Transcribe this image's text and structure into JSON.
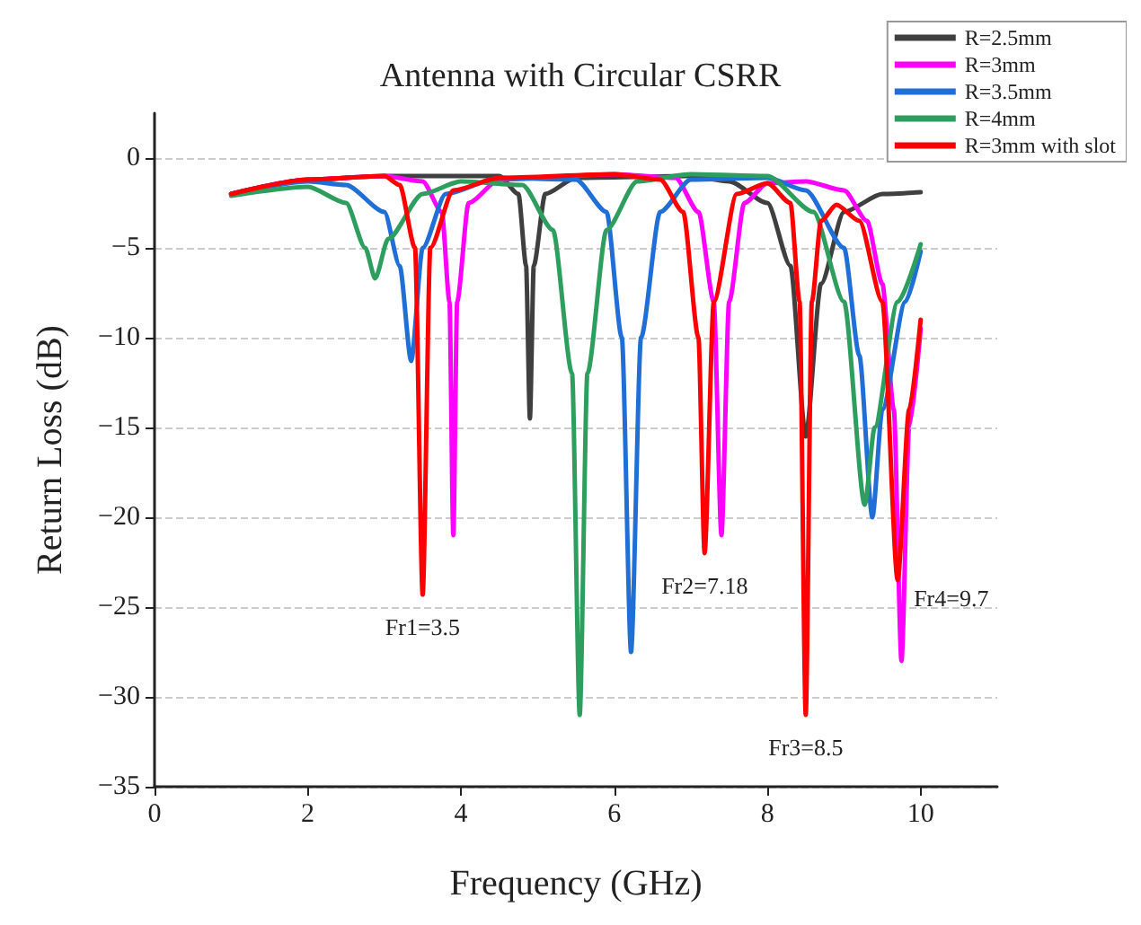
{
  "chart_data": {
    "type": "line",
    "title": "Antenna with Circular CSRR",
    "xlabel": "Frequency (GHz)",
    "ylabel": "Return Loss (dB)",
    "xlim": [
      0,
      11
    ],
    "xticks": [
      0,
      2,
      4,
      6,
      8,
      10
    ],
    "ylim": [
      -35,
      2.5
    ],
    "yticks": [
      -35,
      -30,
      -25,
      -20,
      -15,
      -10,
      -5,
      0
    ],
    "grid": "y",
    "legend": "top right",
    "marker": "none",
    "line_style": "solid",
    "series": [
      {
        "name": "R=2.5mm",
        "color": "#3f3f3f",
        "x": [
          1,
          2,
          3,
          4.5,
          4.75,
          4.85,
          4.9,
          4.95,
          5.1,
          5.5,
          7,
          7.5,
          8,
          8.3,
          8.5,
          8.7,
          9,
          9.5,
          10
        ],
        "values": [
          -2,
          -1.2,
          -1,
          -1,
          -2,
          -6,
          -14.5,
          -6,
          -2,
          -1.1,
          -1,
          -1.3,
          -2.5,
          -6,
          -15.5,
          -7,
          -3,
          -2,
          -1.9
        ]
      },
      {
        "name": "R=3mm",
        "color": "#ff00ff",
        "x": [
          1,
          2,
          3,
          3.5,
          3.75,
          3.85,
          3.9,
          3.95,
          4.1,
          4.5,
          6,
          6.8,
          7.1,
          7.3,
          7.4,
          7.5,
          7.7,
          8,
          8.5,
          9,
          9.3,
          9.5,
          9.65,
          9.75,
          9.85,
          10
        ],
        "values": [
          -2,
          -1.2,
          -1,
          -1.3,
          -3,
          -8,
          -21,
          -8,
          -2.5,
          -1.2,
          -0.9,
          -1.1,
          -3,
          -8,
          -21,
          -8,
          -2.5,
          -1.4,
          -1.3,
          -1.8,
          -3.5,
          -7,
          -14,
          -28,
          -15,
          -9.5
        ]
      },
      {
        "name": "R=3.5mm",
        "color": "#1f6fd6",
        "x": [
          1,
          2,
          2.5,
          3,
          3.2,
          3.35,
          3.5,
          3.8,
          4.5,
          5.5,
          5.9,
          6.1,
          6.22,
          6.35,
          6.6,
          7,
          8,
          8.5,
          9,
          9.2,
          9.37,
          9.5,
          9.8,
          10
        ],
        "values": [
          -2,
          -1.3,
          -1.5,
          -3,
          -6,
          -11.3,
          -5,
          -2,
          -1.1,
          -1.2,
          -3,
          -10,
          -27.5,
          -10,
          -3,
          -1.2,
          -1.1,
          -1.8,
          -5,
          -11,
          -20,
          -14,
          -8,
          -5.2
        ]
      },
      {
        "name": "R=4mm",
        "color": "#2e9e5e",
        "x": [
          1,
          2,
          2.5,
          2.75,
          2.88,
          3.05,
          3.5,
          4,
          4.8,
          5.2,
          5.45,
          5.55,
          5.65,
          5.9,
          6.3,
          7,
          8,
          8.6,
          9,
          9.27,
          9.4,
          9.7,
          10
        ],
        "values": [
          -2.1,
          -1.6,
          -2.5,
          -5,
          -6.7,
          -4.5,
          -2,
          -1.3,
          -1.5,
          -4,
          -12,
          -31,
          -12,
          -4,
          -1.3,
          -0.9,
          -1,
          -3,
          -8,
          -19.3,
          -15,
          -8,
          -4.8
        ]
      },
      {
        "name": "R=3mm with slot",
        "color": "#ff0000",
        "x": [
          1,
          2,
          3,
          3.2,
          3.4,
          3.5,
          3.6,
          3.9,
          4.5,
          6,
          6.6,
          6.9,
          7.1,
          7.18,
          7.3,
          7.6,
          8,
          8.3,
          8.42,
          8.5,
          8.58,
          8.7,
          8.9,
          9.2,
          9.5,
          9.7,
          9.85,
          10
        ],
        "values": [
          -2,
          -1.2,
          -1,
          -1.5,
          -5,
          -24.3,
          -5,
          -1.8,
          -1.1,
          -0.9,
          -1.2,
          -3,
          -10,
          -22,
          -8,
          -2,
          -1.4,
          -2.5,
          -8,
          -31,
          -8,
          -3.5,
          -2.6,
          -3.5,
          -8,
          -23.5,
          -14,
          -9
        ]
      }
    ],
    "annotations": [
      {
        "text": "Fr1=3.5",
        "x": 3.5,
        "y": -24.3
      },
      {
        "text": "Fr2=7.18",
        "x": 7.18,
        "y": -22
      },
      {
        "text": "Fr3=8.5",
        "x": 8.5,
        "y": -31
      },
      {
        "text": "Fr4=9.7",
        "x": 9.7,
        "y": -23.5
      }
    ]
  }
}
